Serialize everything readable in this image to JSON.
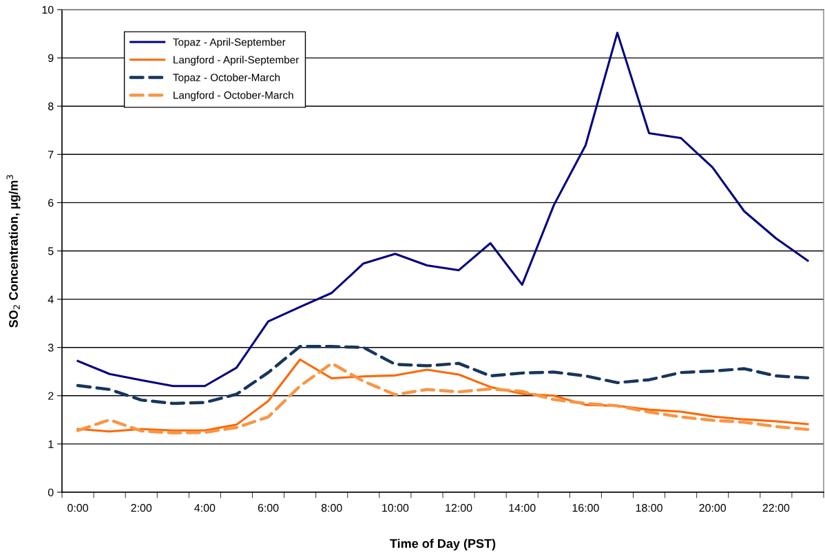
{
  "chart_data": {
    "type": "line",
    "xlabel": "Time of Day (PST)",
    "ylabel": "SO$_{2}$ Concentration, µg/m$^{3}$",
    "categories": [
      "0:00",
      null,
      "2:00",
      null,
      "4:00",
      null,
      "6:00",
      null,
      "8:00",
      null,
      "10:00",
      null,
      "12:00",
      null,
      "14:00",
      null,
      "16:00",
      null,
      "18:00",
      null,
      "20:00",
      null,
      "22:00",
      null
    ],
    "series": [
      {
        "name": "Topaz - April-September",
        "color": "#000080",
        "line_style": "solid",
        "values": [
          2.72,
          2.45,
          2.32,
          2.2,
          2.2,
          2.58,
          3.54,
          3.84,
          4.13,
          4.74,
          4.94,
          4.7,
          4.6,
          5.16,
          4.3,
          5.95,
          7.19,
          9.52,
          7.44,
          7.34,
          6.73,
          5.82,
          5.26,
          4.8
        ]
      },
      {
        "name": "Langford - April-September",
        "color": "#ff6600",
        "line_style": "solid",
        "values": [
          1.31,
          1.26,
          1.31,
          1.28,
          1.28,
          1.4,
          1.89,
          2.75,
          2.36,
          2.4,
          2.42,
          2.54,
          2.44,
          2.18,
          2.04,
          2.0,
          1.81,
          1.79,
          1.71,
          1.67,
          1.57,
          1.51,
          1.47,
          1.41
        ]
      },
      {
        "name": "Topaz - October-March",
        "color": "#17365d",
        "line_style": "dashed",
        "values": [
          2.21,
          2.13,
          1.91,
          1.84,
          1.86,
          2.03,
          2.48,
          3.02,
          3.02,
          3.0,
          2.65,
          2.62,
          2.67,
          2.41,
          2.47,
          2.49,
          2.41,
          2.27,
          2.33,
          2.48,
          2.51,
          2.56,
          2.41,
          2.37
        ]
      },
      {
        "name": "Langford - October-March",
        "color": "#f79646",
        "line_style": "dashed",
        "values": [
          1.28,
          1.5,
          1.27,
          1.23,
          1.24,
          1.34,
          1.56,
          2.2,
          2.67,
          2.3,
          2.02,
          2.13,
          2.08,
          2.14,
          2.09,
          1.92,
          1.84,
          1.79,
          1.66,
          1.56,
          1.49,
          1.45,
          1.36,
          1.3
        ]
      }
    ],
    "ylim": [
      0,
      10
    ],
    "yticks": [
      0,
      1,
      2,
      3,
      4,
      5,
      6,
      7,
      8,
      9,
      10
    ],
    "grid": "y",
    "legend": "top left",
    "marker": "none"
  }
}
